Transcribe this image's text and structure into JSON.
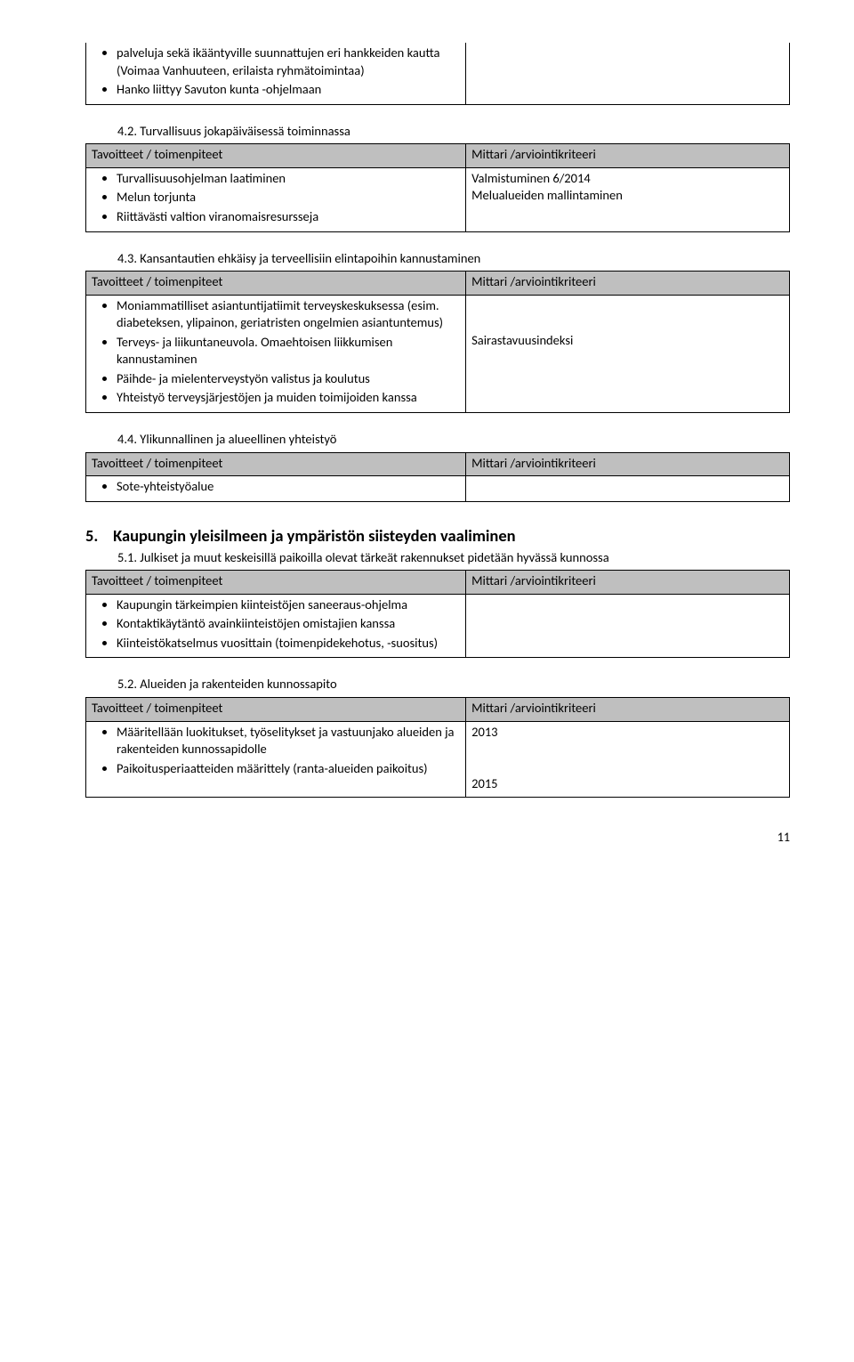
{
  "tbl0": {
    "h1": "",
    "h2": "",
    "left_items": [
      "palveluja sekä ikääntyville suunnattujen eri hankkeiden kautta (Voimaa Vanhuuteen, erilaista ryhmätoimintaa)",
      "Hanko liittyy Savuton kunta -ohjelmaan"
    ],
    "right": ""
  },
  "s42": {
    "title": "4.2. Turvallisuus jokapäiväisessä toiminnassa"
  },
  "tbl42": {
    "h1": "Tavoitteet / toimenpiteet",
    "h2": "Mittari /arviointikriteeri",
    "left_items": [
      "Turvallisuusohjelman laatiminen",
      "Melun torjunta",
      "Riittävästi valtion viranomaisresursseja"
    ],
    "right": "Valmistuminen 6/2014\nMelualueiden mallintaminen"
  },
  "s43": {
    "title": "4.3. Kansantautien ehkäisy ja terveellisiin elintapoihin kannustaminen"
  },
  "tbl43": {
    "h1": "Tavoitteet / toimenpiteet",
    "h2": "Mittari /arviointikriteeri",
    "left_items": [
      "Moniammatilliset asiantuntijatiimit terveyskeskuksessa (esim. diabeteksen, ylipainon, geriatristen ongelmien asiantuntemus)",
      "Terveys- ja liikuntaneuvola. Omaehtoisen liikkumisen kannustaminen",
      "Päihde- ja mielenterveystyön valistus ja koulutus",
      "Yhteistyö terveysjärjestöjen ja muiden toimijoiden kanssa"
    ],
    "right": "\n\nSairastavuusindeksi"
  },
  "s44": {
    "title": "4.4. Ylikunnallinen ja alueellinen yhteistyö"
  },
  "tbl44": {
    "h1": "Tavoitteet / toimenpiteet",
    "h2": "Mittari /arviointikriteeri",
    "left_items": [
      "Sote-yhteistyöalue"
    ],
    "right": ""
  },
  "h5": {
    "num": "5.",
    "title": "Kaupungin yleisilmeen ja ympäristön siisteyden vaaliminen"
  },
  "s51": {
    "title": "5.1. Julkiset ja muut keskeisillä paikoilla olevat tärkeät rakennukset pidetään hyvässä kunnossa"
  },
  "tbl51": {
    "h1": "Tavoitteet / toimenpiteet",
    "h2": "Mittari /arviointikriteeri",
    "left_items": [
      "Kaupungin tärkeimpien kiinteistöjen saneeraus-ohjelma",
      "Kontaktikäytäntö avainkiinteistöjen omistajien kanssa",
      "Kiinteistökatselmus vuosittain (toimenpidekehotus, -suositus)"
    ],
    "right": ""
  },
  "s52": {
    "title": "5.2. Alueiden ja rakenteiden kunnossapito"
  },
  "tbl52": {
    "h1": "Tavoitteet / toimenpiteet",
    "h2": "Mittari /arviointikriteeri",
    "left_items": [
      "Määritellään luokitukset, työselitykset ja vastuunjako alueiden ja rakenteiden kunnossapidolle",
      "Paikoitusperiaatteiden määrittely (ranta-alueiden paikoitus)"
    ],
    "right": "2013\n\n\n2015"
  },
  "page": "11"
}
